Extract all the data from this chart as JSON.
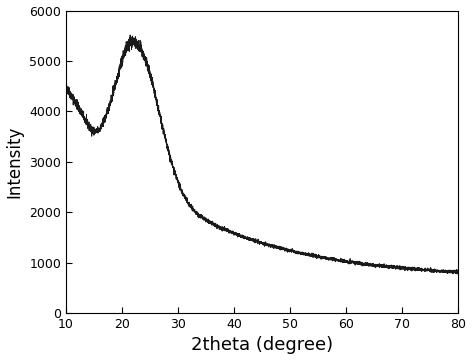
{
  "xlabel": "2theta (degree)",
  "ylabel": "Intensity",
  "xlim": [
    10,
    80
  ],
  "ylim": [
    0,
    6000
  ],
  "xticks": [
    10,
    20,
    30,
    40,
    50,
    60,
    70,
    80
  ],
  "yticks": [
    0,
    1000,
    2000,
    3000,
    4000,
    5000,
    6000
  ],
  "line_color": "#1a1a1a",
  "line_width": 0.7,
  "bg_color": "#ffffff",
  "noise_amplitude": 55,
  "seed": 42
}
